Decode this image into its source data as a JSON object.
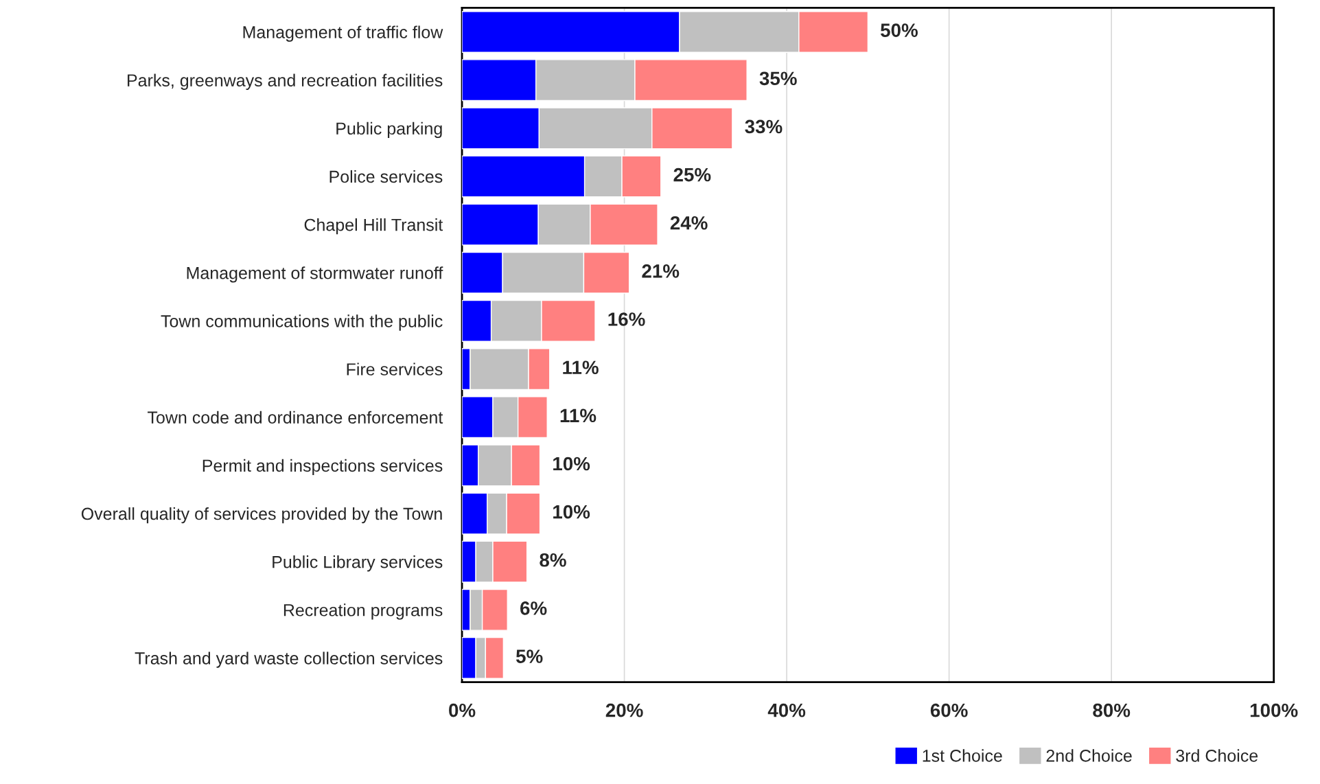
{
  "chart_data": {
    "type": "bar",
    "orientation": "horizontal",
    "stacked": true,
    "categories": [
      "Management of traffic flow",
      "Parks, greenways and recreation facilities",
      "Public parking",
      "Police services",
      "Chapel Hill Transit",
      "Management of stormwater runoff",
      "Town communications with the public",
      "Fire services",
      "Town code and ordinance enforcement",
      "Permit and inspections services",
      "Overall quality of services provided by the Town",
      "Public Library services",
      "Recreation programs",
      "Trash and yard waste collection services"
    ],
    "series": [
      {
        "name": "1st Choice",
        "color": "#0000ff",
        "values": [
          26.8,
          9.1,
          9.5,
          15.1,
          9.4,
          5.0,
          3.6,
          1.0,
          3.8,
          2.0,
          3.1,
          1.7,
          1.0,
          1.7
        ]
      },
      {
        "name": "2nd Choice",
        "color": "#c0c0c0",
        "values": [
          14.7,
          12.2,
          13.9,
          4.6,
          6.4,
          10.0,
          6.2,
          7.2,
          3.1,
          4.1,
          2.4,
          2.1,
          1.5,
          1.2
        ]
      },
      {
        "name": "3rd Choice",
        "color": "#ff8080",
        "values": [
          8.5,
          13.8,
          9.9,
          4.8,
          8.3,
          5.6,
          6.6,
          2.6,
          3.6,
          3.5,
          4.1,
          4.2,
          3.1,
          2.2
        ]
      }
    ],
    "totals": [
      "50%",
      "35%",
      "33%",
      "25%",
      "24%",
      "21%",
      "16%",
      "11%",
      "11%",
      "10%",
      "10%",
      "8%",
      "6%",
      "5%"
    ],
    "xlim": [
      0,
      100
    ],
    "xticks": [
      {
        "value": 0,
        "label": "0%"
      },
      {
        "value": 20,
        "label": "20%"
      },
      {
        "value": 40,
        "label": "40%"
      },
      {
        "value": 60,
        "label": "60%"
      },
      {
        "value": 80,
        "label": "80%"
      },
      {
        "value": 100,
        "label": "100%"
      }
    ],
    "grid": "x",
    "legend": "bottom right"
  }
}
